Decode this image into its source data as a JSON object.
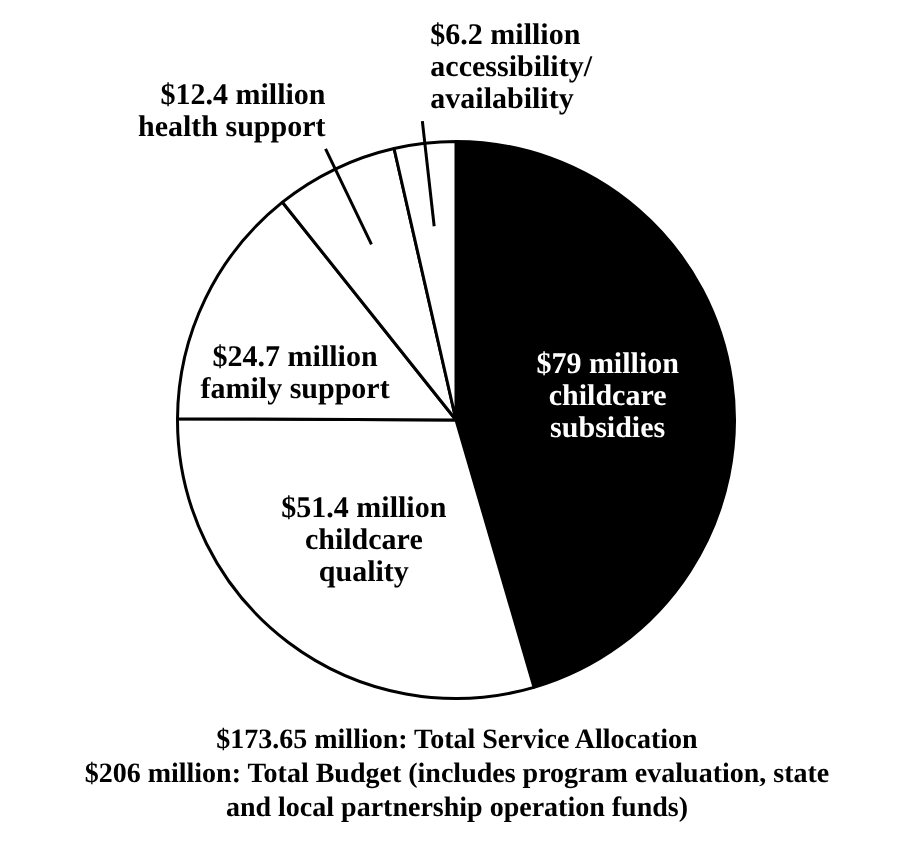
{
  "chart_data": {
    "type": "pie",
    "categories": [
      "childcare subsidies",
      "childcare quality",
      "family support",
      "health support",
      "accessibility/ availability"
    ],
    "values": [
      79,
      51.4,
      24.7,
      12.4,
      6.2
    ],
    "value_labels": [
      "$79 million",
      "$51.4 million",
      "$24.7 million",
      "$12.4 million",
      "$6.2 million"
    ],
    "colors": [
      "#000000",
      "#ffffff",
      "#ffffff",
      "#ffffff",
      "#ffffff"
    ],
    "legend": false,
    "annotations": [
      "$173.65 million: Total Service Allocation",
      "$206 million:  Total Budget (includes program evaluation, state and local partnership operation funds)"
    ]
  }
}
